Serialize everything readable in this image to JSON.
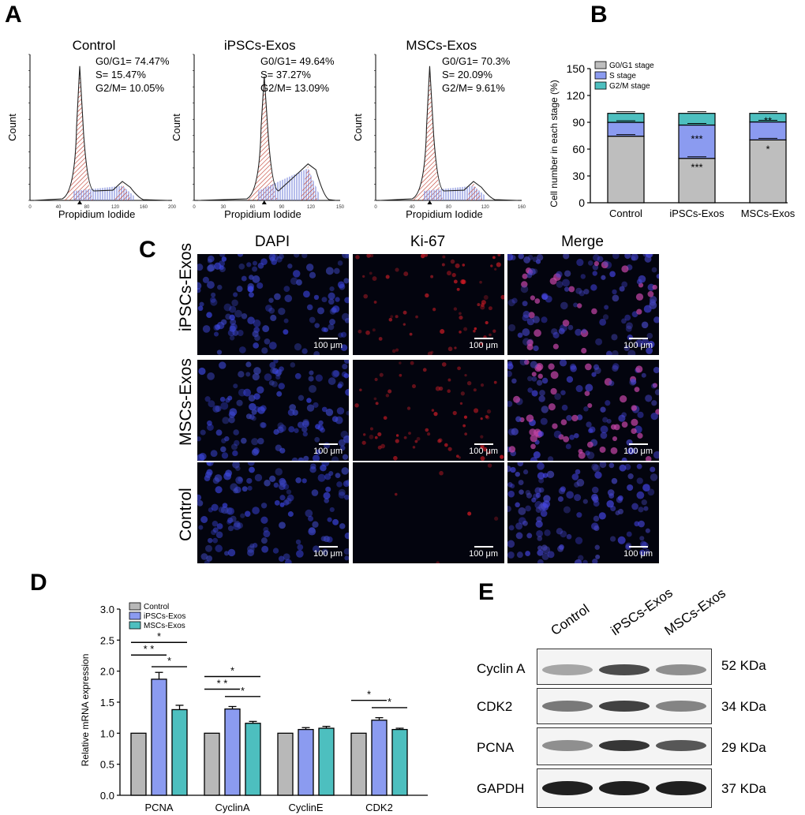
{
  "panels": {
    "a": "A",
    "b": "B",
    "c": "C",
    "d": "D",
    "e": "E"
  },
  "flow": {
    "xlabel": "Propidium Iodide",
    "ylabel": "Count",
    "plots": [
      {
        "title": "Control",
        "stats": [
          "G0/G1= 74.47%",
          "S= 15.47%",
          "G2/M= 10.05%"
        ],
        "ticks": [
          "0",
          "40",
          "80",
          "120",
          "160",
          "200"
        ]
      },
      {
        "title": "iPSCs-Exos",
        "stats": [
          "G0/G1= 49.64%",
          "S= 37.27%",
          "G2/M= 13.09%"
        ],
        "ticks": [
          "0",
          "30",
          "60",
          "90",
          "120",
          "150"
        ]
      },
      {
        "title": "MSCs-Exos",
        "stats": [
          "G0/G1= 70.3%",
          "S= 20.09%",
          "G2/M= 9.61%"
        ],
        "ticks": [
          "0",
          "40",
          "80",
          "120",
          "160"
        ]
      }
    ]
  },
  "micro": {
    "columns": [
      "DAPI",
      "Ki-67",
      "Merge"
    ],
    "rows": [
      "iPSCs-Exos",
      "MSCs-Exos",
      "Control"
    ],
    "scale": "100 μm"
  },
  "western": {
    "lanes": [
      "Control",
      "iPSCs-Exos",
      "MSCs-Exos"
    ],
    "rows": [
      {
        "protein": "Cyclin A",
        "kda": "52 KDa"
      },
      {
        "protein": "CDK2",
        "kda": "34 KDa"
      },
      {
        "protein": "PCNA",
        "kda": "29 KDa"
      },
      {
        "protein": "GAPDH",
        "kda": "37 KDa"
      }
    ]
  },
  "chart_data": [
    {
      "type": "bar",
      "stacked": true,
      "categories": [
        "Control",
        "iPSCs-Exos",
        "MSCs-Exos"
      ],
      "series": [
        {
          "name": "G0/G1 stage",
          "color": "#bebebe",
          "values": [
            74.47,
            49.64,
            70.3
          ]
        },
        {
          "name": "S stage",
          "color": "#8b9bf0",
          "values": [
            15.47,
            37.27,
            20.09
          ]
        },
        {
          "name": "G2/M stage",
          "color": "#4dbfbf",
          "values": [
            10.05,
            13.09,
            9.61
          ]
        }
      ],
      "annotations": [
        {
          "category": "iPSCs-Exos",
          "series": "S stage",
          "text": "***"
        },
        {
          "category": "iPSCs-Exos",
          "series": "G0/G1 stage",
          "text": "***"
        },
        {
          "category": "MSCs-Exos",
          "series": "S stage",
          "text": "**"
        },
        {
          "category": "MSCs-Exos",
          "series": "G0/G1 stage",
          "text": "*"
        }
      ],
      "ylabel": "Cell number in each stage (%)",
      "ylim": [
        0,
        150
      ],
      "yticks": [
        "0",
        "30",
        "60",
        "90",
        "120",
        "150"
      ],
      "legend": "top-left"
    },
    {
      "type": "bar",
      "categories": [
        "PCNA",
        "CyclinA",
        "CyclinE",
        "CDK2"
      ],
      "series": [
        {
          "name": "Control",
          "color": "#b8b8b8",
          "values": [
            1.0,
            1.0,
            1.0,
            1.0
          ],
          "errors": [
            0,
            0,
            0,
            0
          ]
        },
        {
          "name": "iPSCs-Exos",
          "color": "#8b9bf0",
          "values": [
            1.87,
            1.39,
            1.06,
            1.21
          ],
          "errors": [
            0.11,
            0.04,
            0.03,
            0.04
          ]
        },
        {
          "name": "MSCs-Exos",
          "color": "#4dbfbf",
          "values": [
            1.38,
            1.16,
            1.08,
            1.06
          ],
          "errors": [
            0.07,
            0.03,
            0.03,
            0.02
          ]
        }
      ],
      "significance": [
        {
          "category": "PCNA",
          "from": "Control",
          "to": "iPSCs-Exos",
          "text": "* *"
        },
        {
          "category": "PCNA",
          "from": "Control",
          "to": "MSCs-Exos",
          "text": "*"
        },
        {
          "category": "PCNA",
          "from": "iPSCs-Exos",
          "to": "MSCs-Exos",
          "text": "*"
        },
        {
          "category": "CyclinA",
          "from": "Control",
          "to": "iPSCs-Exos",
          "text": "* *"
        },
        {
          "category": "CyclinA",
          "from": "Control",
          "to": "MSCs-Exos",
          "text": "*"
        },
        {
          "category": "CyclinA",
          "from": "iPSCs-Exos",
          "to": "MSCs-Exos",
          "text": "*"
        },
        {
          "category": "CDK2",
          "from": "Control",
          "to": "iPSCs-Exos",
          "text": "*"
        },
        {
          "category": "CDK2",
          "from": "iPSCs-Exos",
          "to": "MSCs-Exos",
          "text": "*"
        }
      ],
      "ylabel": "Relative mRNA expression",
      "ylim": [
        0,
        3.0
      ],
      "yticks": [
        "0.0",
        "0.5",
        "1.0",
        "1.5",
        "2.0",
        "2.5",
        "3.0"
      ],
      "legend": "top-left"
    }
  ]
}
